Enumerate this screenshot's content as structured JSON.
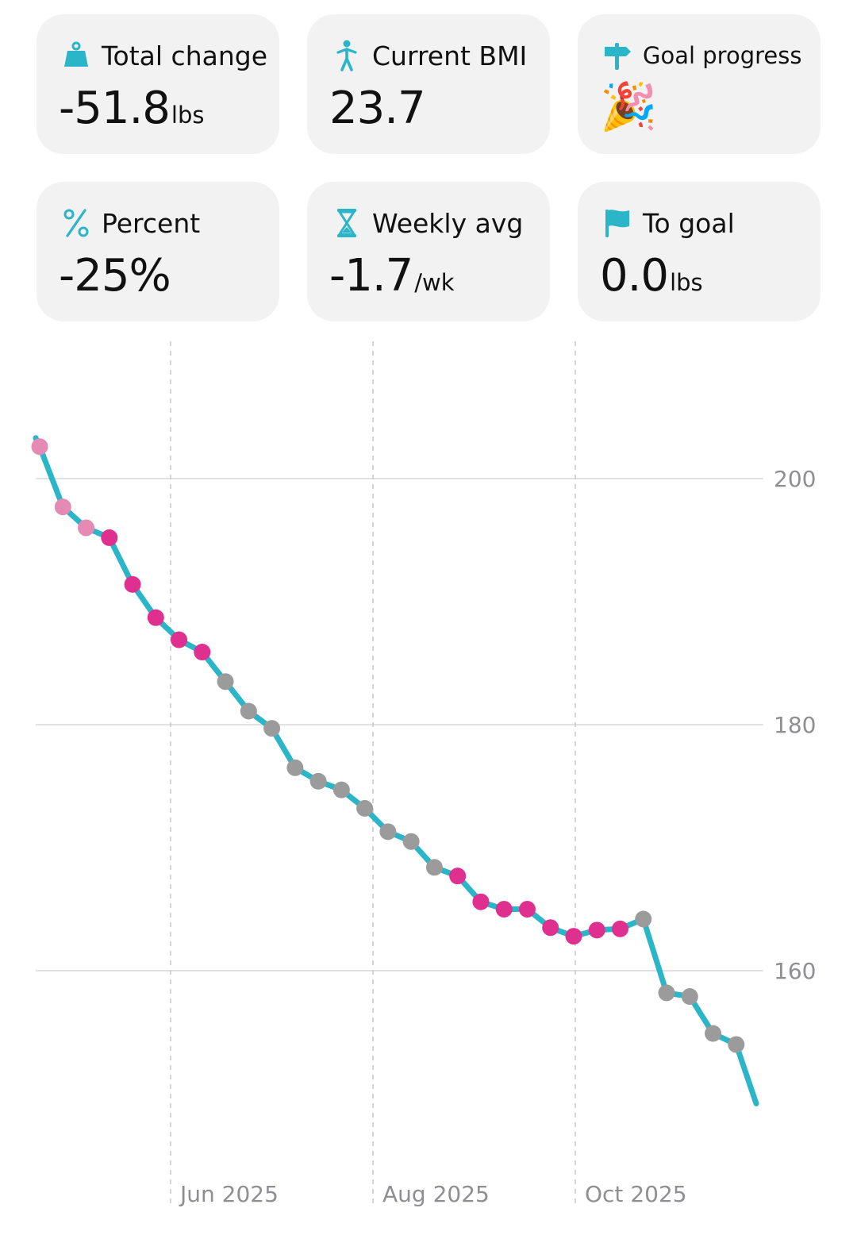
{
  "cards": {
    "total_change": {
      "label": "Total change",
      "value": "-51.8",
      "unit": "lbs",
      "icon": "scale-icon"
    },
    "current_bmi": {
      "label": "Current BMI",
      "value": "23.7",
      "unit": "",
      "icon": "person-icon"
    },
    "goal_progress": {
      "label": "Goal progress",
      "value": "🎉",
      "unit": "",
      "icon": "signpost-icon"
    },
    "percent": {
      "label": "Percent",
      "value": "-25%",
      "unit": "",
      "icon": "percent-icon"
    },
    "weekly_avg": {
      "label": "Weekly avg",
      "value": "-1.7",
      "unit": "/wk",
      "icon": "hourglass-icon"
    },
    "to_goal": {
      "label": "To goal",
      "value": "0.0",
      "unit": "lbs",
      "icon": "flag-icon"
    }
  },
  "chart_data": {
    "type": "line",
    "y_ticks": [
      200,
      180,
      160
    ],
    "y_tick_labels": [
      "200",
      "180",
      "160"
    ],
    "ylim": [
      144,
      212
    ],
    "x_ticks": [
      "Jun 2025",
      "Aug 2025",
      "Oct 2025"
    ],
    "colors": {
      "line": "#2bb5c8",
      "light_pink": "#e58bb3",
      "magenta": "#df2f8f",
      "gray": "#9b9b9b"
    },
    "line_end_start": 203.3,
    "line_end_finish": 149.2,
    "points": [
      {
        "t": 0,
        "y": 202.6,
        "c": "light_pink"
      },
      {
        "t": 1,
        "y": 197.7,
        "c": "light_pink"
      },
      {
        "t": 2,
        "y": 196.0,
        "c": "light_pink"
      },
      {
        "t": 3,
        "y": 195.2,
        "c": "magenta"
      },
      {
        "t": 4,
        "y": 191.4,
        "c": "magenta"
      },
      {
        "t": 5,
        "y": 188.7,
        "c": "magenta"
      },
      {
        "t": 6,
        "y": 186.9,
        "c": "magenta"
      },
      {
        "t": 7,
        "y": 185.9,
        "c": "magenta"
      },
      {
        "t": 8,
        "y": 183.5,
        "c": "gray"
      },
      {
        "t": 9,
        "y": 181.1,
        "c": "gray"
      },
      {
        "t": 10,
        "y": 179.7,
        "c": "gray"
      },
      {
        "t": 11,
        "y": 176.5,
        "c": "gray"
      },
      {
        "t": 12,
        "y": 175.4,
        "c": "gray"
      },
      {
        "t": 13,
        "y": 174.7,
        "c": "gray"
      },
      {
        "t": 14,
        "y": 173.2,
        "c": "gray"
      },
      {
        "t": 15,
        "y": 171.3,
        "c": "gray"
      },
      {
        "t": 16,
        "y": 170.5,
        "c": "gray"
      },
      {
        "t": 17,
        "y": 168.4,
        "c": "gray"
      },
      {
        "t": 18,
        "y": 167.7,
        "c": "magenta"
      },
      {
        "t": 19,
        "y": 165.6,
        "c": "magenta"
      },
      {
        "t": 20,
        "y": 165.0,
        "c": "magenta"
      },
      {
        "t": 21,
        "y": 165.0,
        "c": "magenta"
      },
      {
        "t": 22,
        "y": 163.5,
        "c": "magenta"
      },
      {
        "t": 23,
        "y": 162.8,
        "c": "magenta"
      },
      {
        "t": 24,
        "y": 163.3,
        "c": "magenta"
      },
      {
        "t": 25,
        "y": 163.4,
        "c": "magenta"
      },
      {
        "t": 26,
        "y": 164.2,
        "c": "gray"
      },
      {
        "t": 27,
        "y": 158.2,
        "c": "gray"
      },
      {
        "t": 28,
        "y": 157.9,
        "c": "gray"
      },
      {
        "t": 29,
        "y": 154.9,
        "c": "gray"
      },
      {
        "t": 30,
        "y": 154.0,
        "c": "gray"
      }
    ]
  }
}
